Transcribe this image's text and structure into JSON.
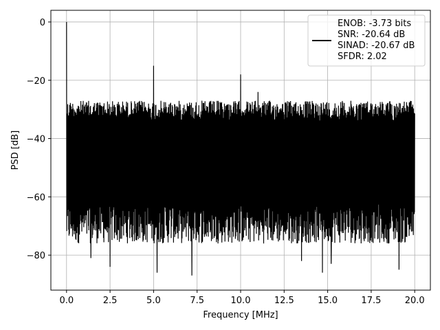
{
  "chart_data": {
    "type": "line",
    "xlabel": "Frequency [MHz]",
    "ylabel": "PSD [dB]",
    "xlim": [
      -0.9,
      20.9
    ],
    "ylim": [
      -92,
      4
    ],
    "xticks": [
      0.0,
      2.5,
      5.0,
      7.5,
      10.0,
      12.5,
      15.0,
      17.5,
      20.0
    ],
    "xtick_labels": [
      "0.0",
      "2.5",
      "5.0",
      "7.5",
      "10.0",
      "12.5",
      "15.0",
      "17.5",
      "20.0"
    ],
    "yticks": [
      0,
      -20,
      -40,
      -60,
      -80
    ],
    "ytick_labels": [
      "0",
      "−20",
      "−40",
      "−60",
      "−80"
    ],
    "grid": true,
    "legend_position": "top-right",
    "series": [
      {
        "name": "ENOB: -3.73 bits\nSNR: -20.64 dB\nSINAD: -20.67 dB\nSFDR: 2.02",
        "color": "#000000",
        "description": "dense noisy PSD trace",
        "noise_band_top_dB": -27,
        "noise_band_bottom_dB": -72,
        "min_spikes": [
          {
            "x": 1.4,
            "y": -81
          },
          {
            "x": 2.5,
            "y": -84
          },
          {
            "x": 5.2,
            "y": -86
          },
          {
            "x": 7.2,
            "y": -87
          },
          {
            "x": 10.0,
            "y": -82
          },
          {
            "x": 13.5,
            "y": -82
          },
          {
            "x": 14.7,
            "y": -86
          },
          {
            "x": 15.2,
            "y": -83
          },
          {
            "x": 19.1,
            "y": -85
          }
        ],
        "peaks": [
          {
            "x": 0.0,
            "y": 0
          },
          {
            "x": 5.0,
            "y": -15
          },
          {
            "x": 10.0,
            "y": -18
          },
          {
            "x": 11.0,
            "y": -24
          }
        ]
      }
    ]
  },
  "legend": {
    "lines": [
      "ENOB: -3.73 bits",
      "SNR: -20.64 dB",
      "SINAD: -20.67 dB",
      "SFDR: 2.02"
    ]
  }
}
